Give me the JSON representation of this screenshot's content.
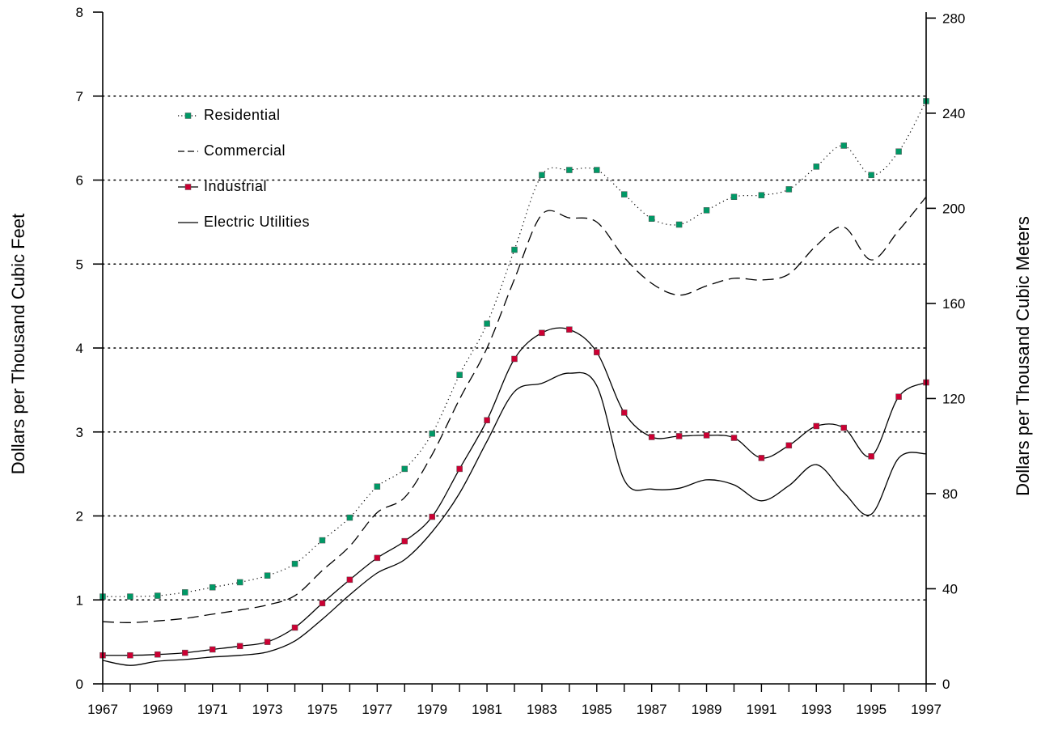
{
  "chart_data": {
    "type": "line",
    "title": "",
    "xlabel": "",
    "ylabel": "Dollars per Thousand Cubic Feet",
    "ylabel_right": "Dollars per Thousand Cubic Meters",
    "xlim": [
      1967,
      1997
    ],
    "ylim": [
      0,
      8
    ],
    "ylim_right": [
      0,
      282.5
    ],
    "x_ticks": [
      1967,
      1969,
      1971,
      1973,
      1975,
      1977,
      1979,
      1981,
      1983,
      1985,
      1987,
      1989,
      1991,
      1993,
      1995,
      1997
    ],
    "x_tick_labels": [
      "1967",
      "1969",
      "1971",
      "1973",
      "1975",
      "1977",
      "1979",
      "1981",
      "1983",
      "1985",
      "1987",
      "1989",
      "1991",
      "1993",
      "1995",
      "1997"
    ],
    "y_ticks": [
      0,
      1,
      2,
      3,
      4,
      5,
      6,
      7,
      8
    ],
    "y_tick_labels": [
      "0",
      "1",
      "2",
      "3",
      "4",
      "5",
      "6",
      "7",
      "8"
    ],
    "y_ticks_right": [
      0,
      40,
      80,
      120,
      160,
      200,
      240,
      280
    ],
    "y_tick_labels_right": [
      "0",
      "40",
      "80",
      "120",
      "160",
      "200",
      "240",
      "280"
    ],
    "grid": "horizontal dotted",
    "legend_position": "top-left",
    "x": [
      1967,
      1968,
      1969,
      1970,
      1971,
      1972,
      1973,
      1974,
      1975,
      1976,
      1977,
      1978,
      1979,
      1980,
      1981,
      1982,
      1983,
      1984,
      1985,
      1986,
      1987,
      1988,
      1989,
      1990,
      1991,
      1992,
      1993,
      1994,
      1995,
      1996,
      1997
    ],
    "series": [
      {
        "name": "Residential",
        "style": "dotted-markers",
        "color": "#009966",
        "values": [
          1.04,
          1.04,
          1.05,
          1.09,
          1.15,
          1.21,
          1.29,
          1.43,
          1.71,
          1.98,
          2.35,
          2.56,
          2.98,
          3.68,
          4.29,
          5.17,
          6.06,
          6.12,
          6.12,
          5.83,
          5.54,
          5.47,
          5.64,
          5.8,
          5.82,
          5.89,
          6.16,
          6.41,
          6.06,
          6.34,
          6.94
        ]
      },
      {
        "name": "Commercial",
        "style": "dashed",
        "color": "#000000",
        "values": [
          0.74,
          0.73,
          0.75,
          0.78,
          0.83,
          0.88,
          0.94,
          1.05,
          1.35,
          1.64,
          2.04,
          2.22,
          2.73,
          3.39,
          4.0,
          4.82,
          5.59,
          5.55,
          5.5,
          5.08,
          4.77,
          4.63,
          4.74,
          4.83,
          4.81,
          4.88,
          5.22,
          5.44,
          5.05,
          5.4,
          5.8
        ]
      },
      {
        "name": "Industrial",
        "style": "solid-markers",
        "color": "#cc0033",
        "values": [
          0.34,
          0.34,
          0.35,
          0.37,
          0.41,
          0.45,
          0.5,
          0.67,
          0.96,
          1.24,
          1.5,
          1.7,
          1.99,
          2.56,
          3.14,
          3.87,
          4.18,
          4.22,
          3.95,
          3.23,
          2.94,
          2.95,
          2.96,
          2.93,
          2.69,
          2.84,
          3.07,
          3.05,
          2.71,
          3.42,
          3.59
        ]
      },
      {
        "name": "Electric Utilities",
        "style": "solid",
        "color": "#000000",
        "values": [
          0.28,
          0.22,
          0.27,
          0.29,
          0.32,
          0.34,
          0.38,
          0.51,
          0.77,
          1.06,
          1.32,
          1.48,
          1.81,
          2.27,
          2.89,
          3.48,
          3.58,
          3.7,
          3.55,
          2.43,
          2.32,
          2.33,
          2.43,
          2.37,
          2.18,
          2.36,
          2.61,
          2.28,
          2.02,
          2.69,
          2.74
        ]
      }
    ]
  }
}
